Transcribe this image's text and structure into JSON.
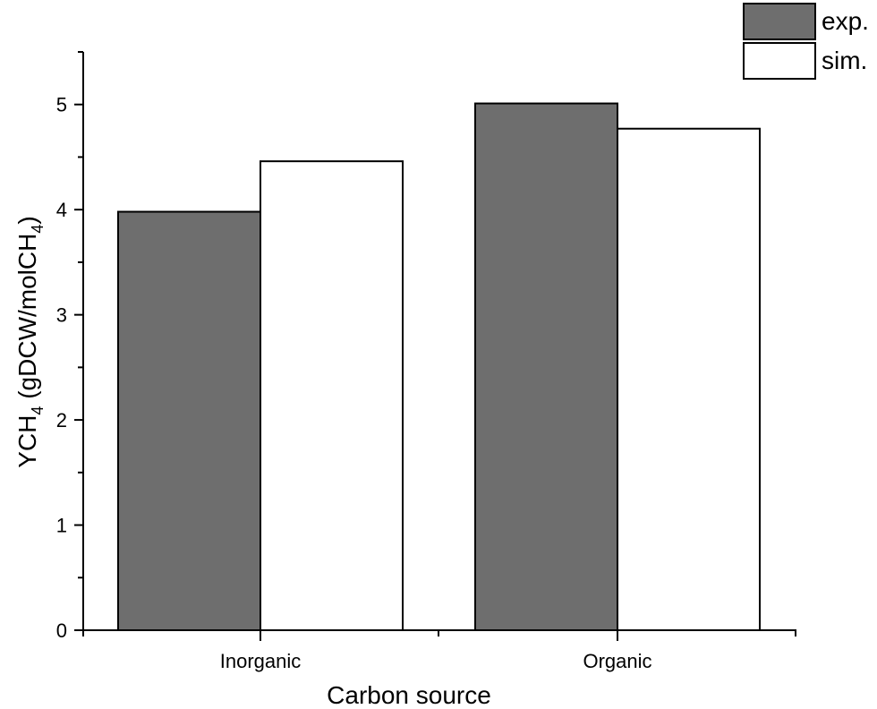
{
  "chart_data": {
    "type": "bar",
    "title": "",
    "xlabel": "Carbon source",
    "ylabel": {
      "main": "YCH",
      "main_sub": "4",
      "unit_prefix": " (gDCW/molCH",
      "unit_sub": "4",
      "unit_suffix": ")"
    },
    "ylim": [
      0,
      5.5
    ],
    "yticks": [
      0,
      1,
      2,
      3,
      4,
      5
    ],
    "categories": [
      "Inorganic",
      "Organic"
    ],
    "series": [
      {
        "name": "exp.",
        "color": "#6e6e6e",
        "values": [
          3.98,
          5.01
        ]
      },
      {
        "name": "sim.",
        "color": "#ffffff",
        "values": [
          4.46,
          4.77
        ]
      }
    ],
    "legend_position": "top-right",
    "grid": false
  }
}
